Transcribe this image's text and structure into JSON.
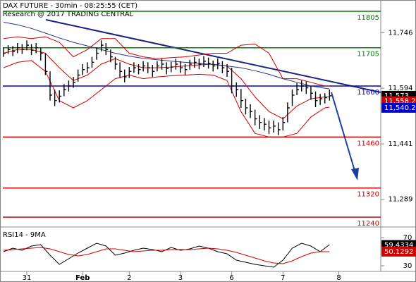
{
  "chart_data": [
    {
      "type": "ohlc",
      "title": "DAX FUTURE - 30min - 08:25:55 (CET)",
      "subtitle": "Research @ 2017 TRADING CENTRAL",
      "ylim": [
        11213,
        11836
      ],
      "yticks": [
        {
          "value": 11746,
          "label": "11,746"
        },
        {
          "value": 11594,
          "label": "11,594"
        },
        {
          "value": 11441,
          "label": "11,441"
        },
        {
          "value": 11289,
          "label": "11,289"
        }
      ],
      "xlim": [
        -0.75,
        81
      ],
      "xticks": [
        {
          "value": 5,
          "label": "31"
        },
        {
          "value": 17,
          "label": "Feb"
        },
        {
          "value": 27,
          "label": "2"
        },
        {
          "value": 38,
          "label": "3"
        },
        {
          "value": 49,
          "label": "6"
        },
        {
          "value": 60,
          "label": "7"
        },
        {
          "value": 72,
          "label": "8"
        }
      ],
      "bar_color": "#000000",
      "high": [
        11705,
        11712,
        11710,
        11718,
        11715,
        11725,
        11715,
        11718,
        11705,
        11690,
        11640,
        11590,
        11588,
        11605,
        11615,
        11625,
        11645,
        11660,
        11665,
        11680,
        11705,
        11725,
        11718,
        11700,
        11680,
        11665,
        11645,
        11652,
        11665,
        11660,
        11668,
        11665,
        11658,
        11668,
        11675,
        11665,
        11666,
        11675,
        11668,
        11660,
        11672,
        11680,
        11675,
        11682,
        11678,
        11670,
        11676,
        11668,
        11660,
        11650,
        11610,
        11592,
        11565,
        11550,
        11535,
        11520,
        11512,
        11505,
        11505,
        11500,
        11515,
        11555,
        11590,
        11608,
        11615,
        11612,
        11600,
        11585,
        11578,
        11580,
        11590
      ],
      "low": [
        11680,
        11688,
        11682,
        11690,
        11688,
        11698,
        11685,
        11690,
        11670,
        11630,
        11560,
        11545,
        11555,
        11572,
        11585,
        11595,
        11612,
        11630,
        11636,
        11650,
        11672,
        11695,
        11685,
        11665,
        11645,
        11622,
        11610,
        11622,
        11636,
        11632,
        11640,
        11635,
        11625,
        11640,
        11645,
        11632,
        11638,
        11645,
        11636,
        11630,
        11645,
        11650,
        11646,
        11652,
        11648,
        11640,
        11646,
        11635,
        11625,
        11580,
        11570,
        11540,
        11522,
        11512,
        11492,
        11482,
        11478,
        11468,
        11472,
        11465,
        11478,
        11500,
        11545,
        11575,
        11585,
        11578,
        11562,
        11542,
        11548,
        11552,
        11560
      ],
      "close": [
        11690,
        11700,
        11695,
        11705,
        11700,
        11712,
        11698,
        11705,
        11690,
        11640,
        11575,
        11560,
        11572,
        11590,
        11600,
        11610,
        11630,
        11645,
        11650,
        11665,
        11690,
        11712,
        11700,
        11680,
        11660,
        11640,
        11625,
        11640,
        11650,
        11645,
        11655,
        11650,
        11640,
        11655,
        11660,
        11648,
        11652,
        11660,
        11650,
        11645,
        11660,
        11665,
        11660,
        11668,
        11662,
        11655,
        11662,
        11650,
        11640,
        11600,
        11590,
        11560,
        11540,
        11530,
        11510,
        11500,
        11495,
        11485,
        11490,
        11480,
        11500,
        11540,
        11575,
        11590,
        11600,
        11595,
        11580,
        11560,
        11565,
        11568,
        11573
      ],
      "lines": [
        {
          "color": "#d00000",
          "x": [
            0,
            3,
            6,
            9,
            12,
            15,
            18,
            21,
            24,
            27,
            30,
            33,
            36,
            39,
            42,
            45,
            48,
            51,
            54,
            57,
            60,
            63,
            66,
            69,
            70
          ],
          "values": [
            11730,
            11735,
            11730,
            11735,
            11720,
            11680,
            11700,
            11730,
            11730,
            11690,
            11680,
            11675,
            11678,
            11680,
            11685,
            11690,
            11690,
            11712,
            11715,
            11690,
            11620,
            11620,
            11610,
            11600,
            11600
          ]
        },
        {
          "color": "#d00000",
          "x": [
            0,
            3,
            6,
            9,
            12,
            15,
            18,
            21,
            24,
            27,
            30,
            33,
            36,
            39,
            42,
            45,
            48,
            51,
            54,
            57,
            60,
            63,
            66,
            69,
            70
          ],
          "values": [
            11690,
            11700,
            11700,
            11690,
            11650,
            11615,
            11630,
            11660,
            11675,
            11660,
            11650,
            11650,
            11652,
            11655,
            11658,
            11660,
            11655,
            11620,
            11570,
            11530,
            11510,
            11545,
            11565,
            11570,
            11570
          ]
        },
        {
          "color": "#d00000",
          "x": [
            0,
            3,
            6,
            9,
            12,
            15,
            18,
            21,
            24,
            27,
            30,
            33,
            36,
            39,
            42,
            45,
            48,
            51,
            54,
            57,
            60,
            63,
            66,
            69,
            70
          ],
          "values": [
            11650,
            11665,
            11670,
            11640,
            11560,
            11540,
            11560,
            11590,
            11620,
            11630,
            11620,
            11625,
            11628,
            11630,
            11632,
            11630,
            11615,
            11530,
            11470,
            11460,
            11460,
            11470,
            11515,
            11540,
            11542
          ]
        },
        {
          "color": "#2a3380",
          "x": [
            0,
            3,
            6,
            9,
            12,
            15,
            18,
            21,
            24,
            27,
            30,
            33,
            36,
            39,
            42,
            45,
            48,
            51,
            54,
            57,
            60,
            63,
            66,
            69,
            70
          ],
          "values": [
            11775,
            11768,
            11758,
            11745,
            11732,
            11720,
            11710,
            11700,
            11690,
            11682,
            11676,
            11672,
            11668,
            11665,
            11662,
            11659,
            11655,
            11650,
            11642,
            11632,
            11620,
            11610,
            11600,
            11594,
            11592
          ]
        }
      ],
      "levels": [
        {
          "value": 11805,
          "color": "#008000"
        },
        {
          "value": 11705,
          "color": "#008000"
        },
        {
          "value": 11600,
          "color": "#0000c8"
        },
        {
          "value": 11460,
          "color": "#d00000"
        },
        {
          "value": 11320,
          "color": "#d00000"
        },
        {
          "value": 11240,
          "color": "#d00000"
        }
      ],
      "price_tags": [
        {
          "value": 11573,
          "label": "11,573",
          "color": "#000000"
        },
        {
          "value": 11558.2,
          "label": "11,558.2",
          "color": "#d00000"
        },
        {
          "value": 11540.2,
          "label": "11,540.2",
          "color": "#0000c8"
        }
      ]
    },
    {
      "type": "line",
      "title": "RSI14 - 9MA",
      "ylim": [
        22,
        82
      ],
      "yticks": [
        70,
        30
      ],
      "x": [
        0,
        2,
        4,
        6,
        8,
        10,
        12,
        14,
        16,
        18,
        20,
        22,
        24,
        26,
        28,
        30,
        32,
        34,
        36,
        38,
        40,
        42,
        44,
        46,
        48,
        50,
        52,
        54,
        56,
        58,
        60,
        62,
        64,
        66,
        68,
        70
      ],
      "series": [
        {
          "color": "#000000",
          "values": [
            50,
            55,
            52,
            58,
            60,
            45,
            32,
            40,
            48,
            55,
            62,
            58,
            45,
            48,
            52,
            55,
            53,
            50,
            56,
            52,
            54,
            58,
            55,
            50,
            47,
            38,
            35,
            32,
            30,
            28,
            38,
            55,
            62,
            58,
            50,
            60
          ]
        },
        {
          "color": "#d00000",
          "values": [
            52,
            53,
            54,
            55,
            56,
            54,
            50,
            46,
            44,
            46,
            50,
            54,
            54,
            52,
            50,
            51,
            52,
            52,
            53,
            53,
            53,
            54,
            55,
            54,
            52,
            49,
            45,
            41,
            37,
            34,
            33,
            37,
            43,
            48,
            50,
            50
          ]
        }
      ],
      "tags": [
        {
          "value": 59.4334,
          "color": "#000000"
        },
        {
          "value": 50.1292,
          "color": "#d00000"
        }
      ]
    }
  ]
}
